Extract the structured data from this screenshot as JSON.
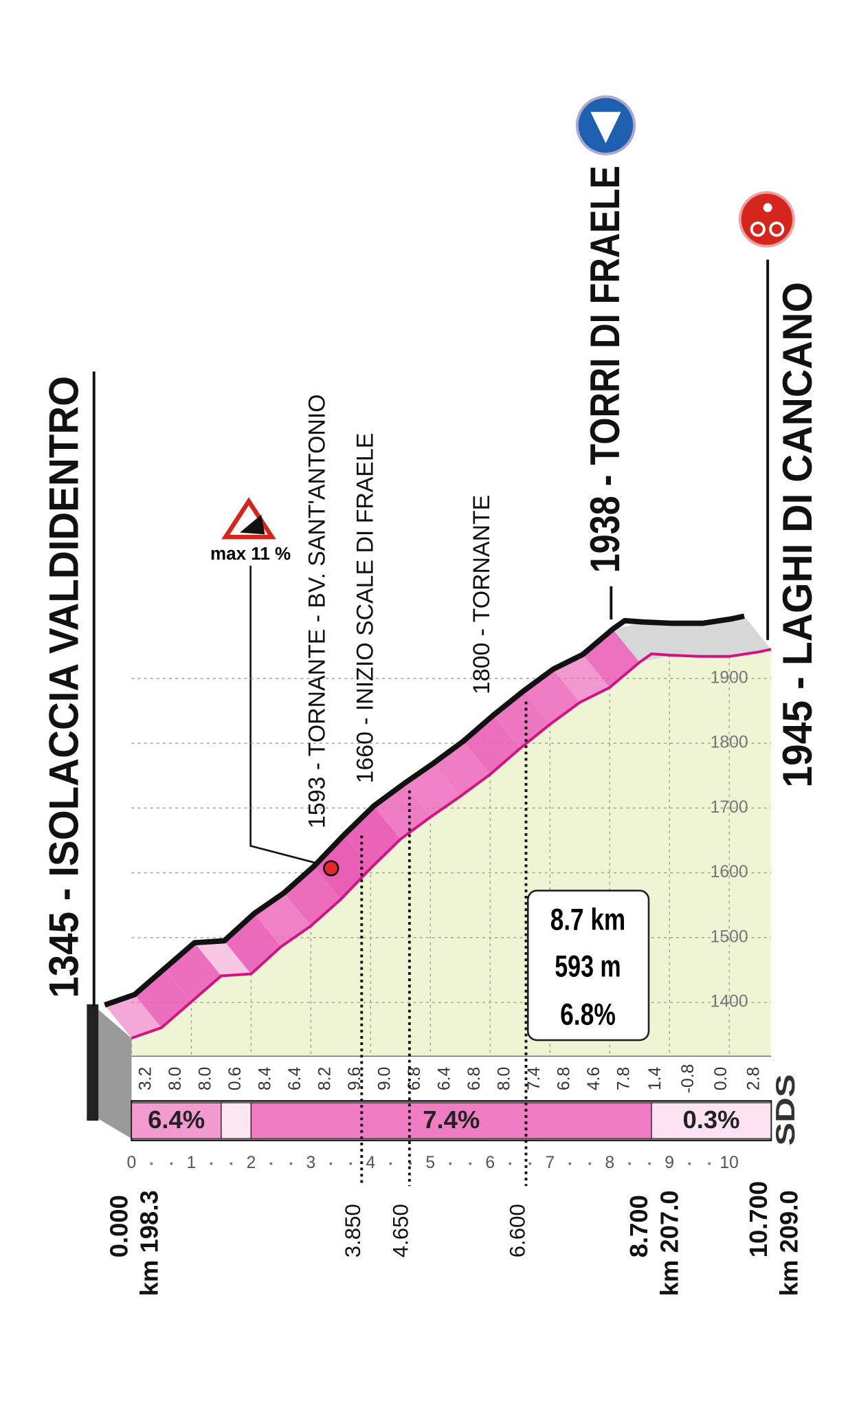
{
  "chart_data": {
    "type": "profile",
    "places": [
      {
        "label": "1345 - ISOLACCIA VALDIDENTRO",
        "distance": {
          "value": 0,
          "label": "0.000"
        },
        "km": "km 198.3"
      },
      {
        "label": "1938 - TORRI DI FRAELE",
        "distance": {
          "value": 8.7,
          "label": "8.700"
        },
        "km": "km 207.0"
      },
      {
        "label": "1945 - LAGHI DI CANCANO",
        "distance": {
          "value": 10.7,
          "label": "10.700"
        },
        "km": "km 209.0"
      }
    ],
    "waypoints": [
      {
        "label": "1593 - TORNANTE - BV. SANT'ANTONIO",
        "distance": {
          "value": 3.85,
          "label": "3.850"
        }
      },
      {
        "label": "1660 - INIZIO SCALE DI FRAELE",
        "distance": {
          "value": 4.65,
          "label": "4.650"
        }
      },
      {
        "label": "1800 - TORNANTE",
        "distance": {
          "value": 6.6,
          "label": "6.600"
        }
      }
    ],
    "x": [
      0,
      0.5,
      1,
      1.5,
      2,
      2.5,
      3,
      3.5,
      4,
      4.5,
      5,
      5.5,
      6,
      6.5,
      7,
      7.5,
      8,
      8.5,
      8.7,
      9,
      9.5,
      10,
      10.5,
      10.7
    ],
    "values": [
      1345,
      1361,
      1401,
      1441,
      1444,
      1486,
      1518,
      1559,
      1607,
      1652,
      1686,
      1718,
      1752,
      1792,
      1829,
      1863,
      1886,
      1925,
      1938,
      1936,
      1934,
      1934,
      1941,
      1945
    ],
    "xlim": [
      0,
      10.7
    ],
    "ylim": [
      1317,
      1960
    ],
    "xticks": [
      0,
      1,
      2,
      3,
      4,
      5,
      6,
      7,
      8,
      9,
      10
    ],
    "yticks": [
      1400,
      1500,
      1600,
      1700,
      1800,
      1900
    ],
    "gradients": {
      "values": [
        3.2,
        8,
        8,
        0.6,
        8.4,
        6.4,
        8.2,
        9.6,
        9,
        6.8,
        6.4,
        6.8,
        8,
        7.4,
        6.8,
        4.6,
        7.8,
        1.4,
        -0.8,
        0,
        2.8
      ],
      "value_labels": [
        "3.2",
        "8.0",
        "8.0",
        "0.6",
        "8.4",
        "6.4",
        "8.2",
        "9.6",
        "9.0",
        "6.8",
        "6.4",
        "6.8",
        "8.0",
        "7.4",
        "6.8",
        "4.6",
        "7.8",
        "1.4",
        "-0.8",
        "0.0",
        "2.8"
      ]
    },
    "sections": [
      {
        "label": "6.4%",
        "range": [
          0,
          1.5
        ],
        "color": "#f39ad0"
      },
      {
        "range": [
          1.5,
          2
        ],
        "color": "#fde7f3"
      },
      {
        "label": "7.4%",
        "range": [
          2,
          8.7
        ],
        "color": "#f07cc4"
      },
      {
        "label": "0.3%",
        "range": [
          8.7,
          10.7
        ],
        "color": "#fde2f1"
      }
    ],
    "summary": [
      "8.7 km",
      "593 m",
      "6.8%"
    ],
    "max_gradient": "max 11 %",
    "logo": "SDS",
    "colors": {
      "area": "#eef4d4",
      "ribbon": "#ea5fb6",
      "post": "#d6d8d8",
      "edge": "#d4127f"
    }
  }
}
